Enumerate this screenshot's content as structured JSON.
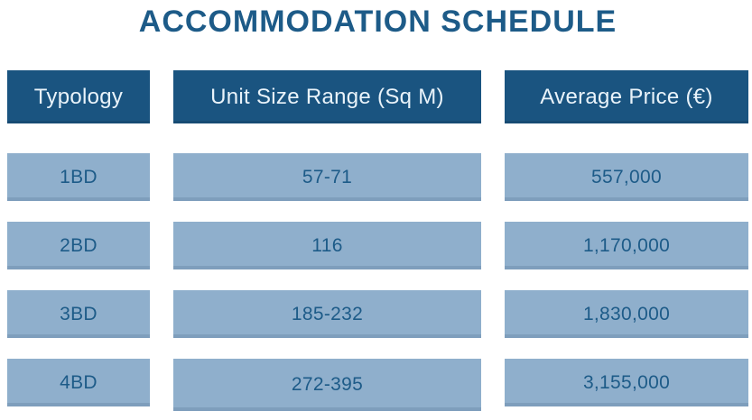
{
  "title": "ACCOMMODATION SCHEDULE",
  "table": {
    "headers": [
      "Typology",
      "Unit Size Range (Sq M)",
      "Average Price (€)"
    ],
    "rows": [
      {
        "typology": "1BD",
        "size_range": "57-71",
        "avg_price": "557,000"
      },
      {
        "typology": "2BD",
        "size_range": "116",
        "avg_price": "1,170,000"
      },
      {
        "typology": "3BD",
        "size_range": "185-232",
        "avg_price": "1,830,000"
      },
      {
        "typology": "4BD",
        "size_range": "272-395",
        "avg_price": "3,155,000"
      }
    ]
  },
  "colors": {
    "header_bg": "#1A5480",
    "header_text": "#E9F3FA",
    "cell_bg": "#8FAFCC",
    "cell_text": "#1D5B88",
    "title_text": "#1D5B88",
    "page_bg": "#FFFFFF"
  },
  "chart_data": {
    "type": "table",
    "title": "ACCOMMODATION SCHEDULE",
    "columns": [
      "Typology",
      "Unit Size Range (Sq M)",
      "Average Price (€)"
    ],
    "rows": [
      [
        "1BD",
        "57-71",
        557000
      ],
      [
        "2BD",
        "116",
        1170000
      ],
      [
        "3BD",
        "185-232",
        1830000
      ],
      [
        "4BD",
        "272-395",
        3155000
      ]
    ],
    "layout": {
      "grid": false,
      "legend": "none",
      "header_style": "dark-navy band",
      "row_style": "steel-blue bands with gaps"
    }
  }
}
